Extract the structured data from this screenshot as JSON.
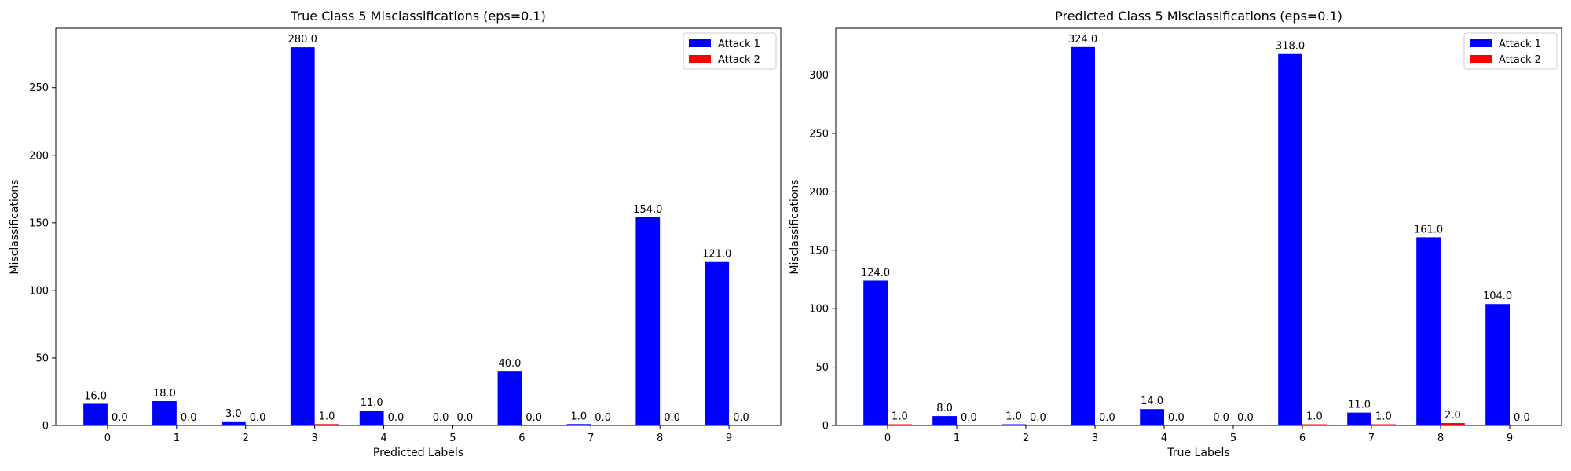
{
  "chart_data": [
    {
      "type": "bar",
      "title": "True Class 5 Misclassifications (eps=0.1)",
      "xlabel": "Predicted Labels",
      "ylabel": "Misclassifications",
      "categories": [
        "0",
        "1",
        "2",
        "3",
        "4",
        "5",
        "6",
        "7",
        "8",
        "9"
      ],
      "ylim": [
        0,
        294
      ],
      "yticks": [
        0,
        50,
        100,
        150,
        200,
        250
      ],
      "series": [
        {
          "name": "Attack 1",
          "color": "#0000ff",
          "values": [
            16,
            18,
            3,
            280,
            11,
            0,
            40,
            1,
            154,
            121
          ],
          "labels": [
            "16.0",
            "18.0",
            "3.0",
            "280.0",
            "11.0",
            "0.0",
            "40.0",
            "1.0",
            "154.0",
            "121.0"
          ]
        },
        {
          "name": "Attack 2",
          "color": "#ff0000",
          "values": [
            0,
            0,
            0,
            1,
            0,
            0,
            0,
            0,
            0,
            0
          ],
          "labels": [
            "0.0",
            "0.0",
            "0.0",
            "1.0",
            "0.0",
            "0.0",
            "0.0",
            "0.0",
            "0.0",
            "0.0"
          ]
        }
      ],
      "legend": "top-right",
      "grid": false
    },
    {
      "type": "bar",
      "title": "Predicted Class 5 Misclassifications (eps=0.1)",
      "xlabel": "True Labels",
      "ylabel": "Misclassifications",
      "categories": [
        "0",
        "1",
        "2",
        "3",
        "4",
        "5",
        "6",
        "7",
        "8",
        "9"
      ],
      "ylim": [
        0,
        340
      ],
      "yticks": [
        0,
        50,
        100,
        150,
        200,
        250,
        300
      ],
      "series": [
        {
          "name": "Attack 1",
          "color": "#0000ff",
          "values": [
            124,
            8,
            1,
            324,
            14,
            0,
            318,
            11,
            161,
            104
          ],
          "labels": [
            "124.0",
            "8.0",
            "1.0",
            "324.0",
            "14.0",
            "0.0",
            "318.0",
            "11.0",
            "161.0",
            "104.0"
          ]
        },
        {
          "name": "Attack 2",
          "color": "#ff0000",
          "values": [
            1,
            0,
            0,
            0,
            0,
            0,
            1,
            1,
            2,
            0
          ],
          "labels": [
            "1.0",
            "0.0",
            "0.0",
            "0.0",
            "0.0",
            "0.0",
            "1.0",
            "1.0",
            "2.0",
            "0.0"
          ]
        }
      ],
      "legend": "top-right",
      "grid": false
    }
  ]
}
